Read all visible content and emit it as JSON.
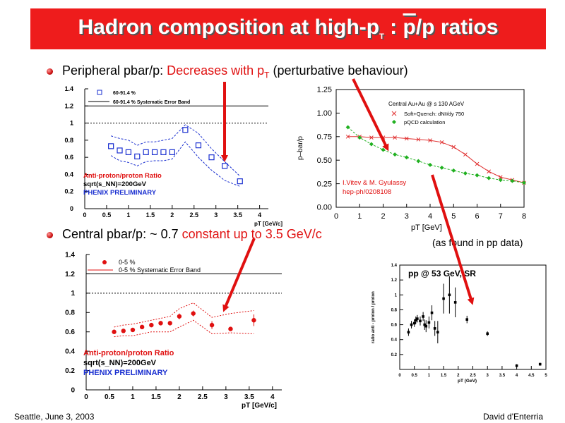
{
  "slide": {
    "title_prefix": "Hadron composition at high-p",
    "title_sub": "T",
    "title_mid": " : ",
    "title_pbar": "p",
    "title_suffix": "/p ratios",
    "bullet1": {
      "prefix": "Peripheral pbar/p: ",
      "red": "Decreases with p",
      "red_sub": "T",
      "suffix": " (perturbative behaviour)"
    },
    "bullet2": {
      "prefix": "Central pbar/p:  ~ 0.7 ",
      "red": "constant up to 3.5 GeV/c"
    },
    "note_pp": "(as  found in pp data)",
    "footer_left": "Seattle, June  3, 2003",
    "footer_right": "David d'Enterria",
    "colors": {
      "title_bg": "#ee1c1c",
      "accent_red": "#e01010",
      "series_blue": "#1a2fd0"
    }
  },
  "chart_data": [
    {
      "id": "peripheral",
      "type": "scatter",
      "xlim": [
        0,
        4.2
      ],
      "ylim": [
        0,
        1.4
      ],
      "xticks": [
        0,
        0.5,
        1,
        1.5,
        2,
        2.5,
        3,
        3.5,
        4
      ],
      "xtick_labels": [
        "0",
        "0.5",
        "1",
        "1.5",
        "2",
        "2.5",
        "3",
        "3.5",
        "4"
      ],
      "yticks": [
        0,
        0.2,
        0.4,
        0.6,
        0.8,
        1,
        1.2,
        1.4
      ],
      "ytick_labels": [
        "0",
        "0.2",
        "0.4",
        "0.6",
        "0.8",
        "1",
        "1.2",
        "1.4"
      ],
      "xlabel": "pT [GeV/c]",
      "legend": [
        "60-91.4 %",
        "60-91.4 % Systematic Error Band"
      ],
      "labels": [
        "Anti-proton/proton Ratio",
        "sqrt(s_NN)=200GeV",
        "PHENIX PRELIMINARY"
      ],
      "reference_line_y": 1,
      "x": [
        0.6,
        0.8,
        1.0,
        1.2,
        1.4,
        1.6,
        1.8,
        2.0,
        2.3,
        2.6,
        2.9,
        3.2,
        3.55
      ],
      "y": [
        0.73,
        0.68,
        0.66,
        0.61,
        0.66,
        0.66,
        0.66,
        0.66,
        0.92,
        0.74,
        0.6,
        0.5,
        0.32
      ],
      "band_upper": [
        0.85,
        0.82,
        0.8,
        0.74,
        0.78,
        0.78,
        0.8,
        0.82,
        0.98,
        0.88,
        0.7,
        0.55,
        0.38
      ],
      "band_lower": [
        0.62,
        0.56,
        0.54,
        0.5,
        0.55,
        0.56,
        0.56,
        0.58,
        0.78,
        0.6,
        0.45,
        0.33,
        0.26
      ]
    },
    {
      "id": "central",
      "type": "scatter",
      "xlim": [
        0,
        4.2
      ],
      "ylim": [
        0,
        1.4
      ],
      "xticks": [
        0,
        0.5,
        1,
        1.5,
        2,
        2.5,
        3,
        3.5,
        4
      ],
      "xtick_labels": [
        "0",
        "0.5",
        "1",
        "1.5",
        "2",
        "2.5",
        "3",
        "3.5",
        "4"
      ],
      "yticks": [
        0,
        0.2,
        0.4,
        0.6,
        0.8,
        1,
        1.2,
        1.4
      ],
      "ytick_labels": [
        "0",
        "0.2",
        "0.4",
        "0.6",
        "0.8",
        "1",
        "1.2",
        "1.4"
      ],
      "xlabel": "pT [GeV/c]",
      "legend": [
        "0-5 %",
        "0-5 % Systematic Error Band"
      ],
      "labels": [
        "Anti-proton/proton Ratio",
        "sqrt(s_NN)=200GeV",
        "PHENIX PRELIMINARY"
      ],
      "reference_line_y": 1,
      "x": [
        0.6,
        0.8,
        1.0,
        1.2,
        1.4,
        1.6,
        1.8,
        2.0,
        2.3,
        2.7,
        3.1,
        3.6
      ],
      "y": [
        0.6,
        0.61,
        0.62,
        0.65,
        0.67,
        0.69,
        0.69,
        0.76,
        0.79,
        0.67,
        0.63,
        0.72
      ],
      "err": [
        0.02,
        0.02,
        0.02,
        0.02,
        0.02,
        0.02,
        0.02,
        0.03,
        0.03,
        0.04,
        0.02,
        0.06
      ],
      "band_upper": [
        0.65,
        0.67,
        0.68,
        0.7,
        0.72,
        0.74,
        0.76,
        0.84,
        0.9,
        0.75,
        0.79,
        0.82
      ],
      "band_lower": [
        0.55,
        0.56,
        0.56,
        0.58,
        0.6,
        0.6,
        0.6,
        0.65,
        0.72,
        0.58,
        0.59,
        0.58
      ]
    },
    {
      "id": "theory",
      "type": "line",
      "xlim": [
        0,
        8
      ],
      "ylim": [
        0,
        1.25
      ],
      "xticks": [
        0,
        1,
        2,
        3,
        4,
        5,
        6,
        7,
        8
      ],
      "xtick_labels": [
        "0",
        "1",
        "2",
        "3",
        "4",
        "5",
        "6",
        "7",
        "8"
      ],
      "yticks": [
        0,
        0.25,
        0.5,
        0.75,
        1.0,
        1.25
      ],
      "ytick_labels": [
        "0.00",
        "0.25",
        "0.50",
        "0.75",
        "1.00",
        "1.25"
      ],
      "xlabel": "pT [GeV]",
      "ylabel": "p–bar/p",
      "title": "Central Au+Au @ s    130 AGeV",
      "citation": [
        "I.Vitev & M. Gyulassy",
        "hep-ph/0208108"
      ],
      "series": [
        {
          "name": "Soft+Quench: dNᵍ/dy   750",
          "marker": "x",
          "color": "#e03030",
          "x": [
            0.5,
            1.0,
            1.5,
            2.0,
            2.5,
            3.0,
            3.5,
            4.0,
            4.5,
            5.0,
            5.5,
            6.0,
            6.5,
            7.0,
            7.5,
            8.0
          ],
          "y": [
            0.75,
            0.75,
            0.74,
            0.74,
            0.74,
            0.73,
            0.72,
            0.71,
            0.69,
            0.64,
            0.56,
            0.46,
            0.38,
            0.32,
            0.29,
            0.26
          ]
        },
        {
          "name": "pQCD calculation",
          "marker": "diamond",
          "color": "#20b020",
          "x": [
            0.5,
            1.0,
            1.5,
            2.0,
            2.5,
            3.0,
            3.5,
            4.0,
            4.5,
            5.0,
            5.5,
            6.0,
            6.5,
            7.0,
            7.5,
            8.0
          ],
          "y": [
            0.85,
            0.74,
            0.67,
            0.61,
            0.56,
            0.53,
            0.49,
            0.45,
            0.42,
            0.39,
            0.36,
            0.34,
            0.31,
            0.29,
            0.28,
            0.26
          ]
        }
      ]
    },
    {
      "id": "pp_isr",
      "type": "scatter",
      "xlim": [
        0,
        5
      ],
      "ylim": [
        0,
        1.4
      ],
      "xticks": [
        0,
        0.5,
        1,
        1.5,
        2,
        2.5,
        3,
        3.5,
        4,
        4.5,
        5
      ],
      "xtick_labels": [
        "0",
        "0.5",
        "1",
        "1.5",
        "2",
        "2.5",
        "3",
        "3.5",
        "4",
        "4.5",
        "5"
      ],
      "yticks": [
        0.2,
        0.4,
        0.6,
        0.8,
        1,
        1.2,
        1.4
      ],
      "ytick_labels": [
        "0.2",
        "0.4",
        "0.6",
        "0.8",
        "1",
        "1.2",
        "1.4"
      ],
      "xlabel": "pT (GeV)",
      "ylabel": "ratio anti - proton / proton",
      "title": "pp @ 53 GeV,ISR",
      "x": [
        0.3,
        0.4,
        0.5,
        0.55,
        0.6,
        0.7,
        0.8,
        0.85,
        0.9,
        1.0,
        1.1,
        1.2,
        1.3,
        1.5,
        1.7,
        1.9,
        2.3,
        3.0,
        4.0,
        4.8
      ],
      "y": [
        0.5,
        0.6,
        0.62,
        0.66,
        0.68,
        0.65,
        0.71,
        0.6,
        0.58,
        0.63,
        0.76,
        0.55,
        0.5,
        0.95,
        1.0,
        0.9,
        0.67,
        0.48,
        0.05,
        0.07
      ],
      "err": [
        0.05,
        0.05,
        0.05,
        0.05,
        0.05,
        0.06,
        0.06,
        0.07,
        0.08,
        0.08,
        0.1,
        0.1,
        0.15,
        0.2,
        0.25,
        0.2,
        0.05,
        0.03,
        0.02,
        0.02
      ]
    }
  ]
}
